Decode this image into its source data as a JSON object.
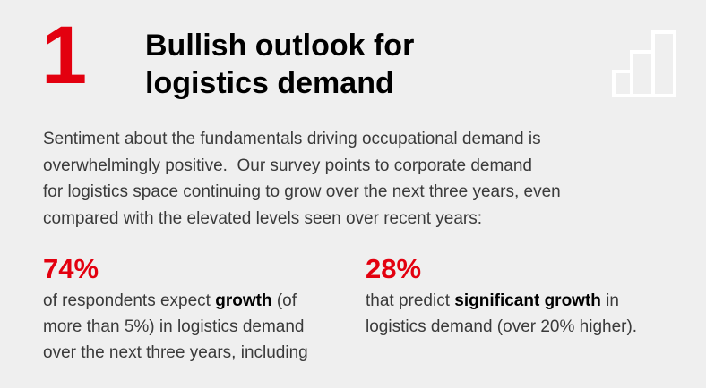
{
  "header": {
    "number": "1",
    "title_lines": [
      "Bullish outlook for",
      "logistics demand"
    ]
  },
  "intro_lines": [
    "Sentiment about the fundamentals driving occupational demand is",
    "overwhelmingly positive.  Our survey points to corporate demand",
    "for logistics space continuing to grow over the next three years, even",
    "compared with the elevated levels seen over recent years:"
  ],
  "stats": [
    {
      "figure": "74%",
      "lines": [
        [
          {
            "text": "of respondents expect "
          },
          {
            "text": "growth",
            "bold": true
          },
          {
            "text": " (of"
          }
        ],
        [
          {
            "text": "more than 5%) in logistics demand"
          }
        ],
        [
          {
            "text": "over the next three years, including"
          }
        ]
      ]
    },
    {
      "figure": "28%",
      "lines": [
        [
          {
            "text": "that predict "
          },
          {
            "text": "significant growth",
            "bold": true
          },
          {
            "text": " in"
          }
        ],
        [
          {
            "text": "logistics demand (over 20% higher)."
          }
        ]
      ]
    }
  ]
}
